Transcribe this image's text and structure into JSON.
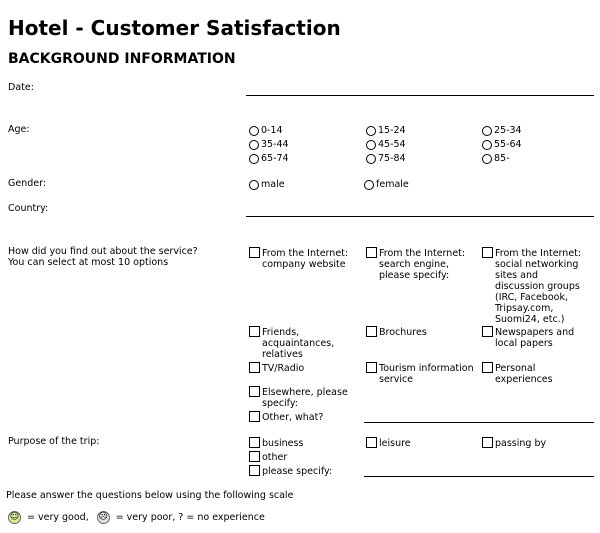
{
  "title": "Hotel - Customer Satisfaction",
  "subtitle": "BACKGROUND INFORMATION",
  "labels": {
    "date": "Date:",
    "age": "Age:",
    "gender": "Gender:",
    "country": "Country:",
    "found_q1": "How did you find out about the service?",
    "found_q2": "You can select at most 10 options",
    "purpose": "Purpose of the trip:"
  },
  "age_options": [
    "0-14",
    "15-24",
    "25-34",
    "35-44",
    "45-54",
    "55-64",
    "65-74",
    "75-84",
    "85-"
  ],
  "gender_options": [
    "male",
    "female"
  ],
  "found_options": [
    "From the Internet:\ncompany website",
    "From the Internet:\nsearch engine,\nplease specify:",
    "From the Internet:\nsocial networking\nsites and\ndiscussion groups\n(IRC, Facebook,\nTripsay.com,\nSuomi24, etc.)",
    "Friends,\nacquaintances,\nrelatives",
    "Brochures",
    "Newspapers and\nlocal papers",
    "TV/Radio",
    "Tourism information\nservice",
    "Personal\nexperiences",
    "Elsewhere, please\nspecify:",
    "Other, what?"
  ],
  "purpose_options": [
    "business",
    "leisure",
    "passing by",
    "other",
    "please specify:"
  ],
  "scale": {
    "intro": "Please answer the questions below using the following scale",
    "good_icon": "smiley-face-icon",
    "good_text": "= very good,",
    "poor_icon": "frowning-face-icon",
    "poor_text": "= very poor, ? = no experience"
  }
}
